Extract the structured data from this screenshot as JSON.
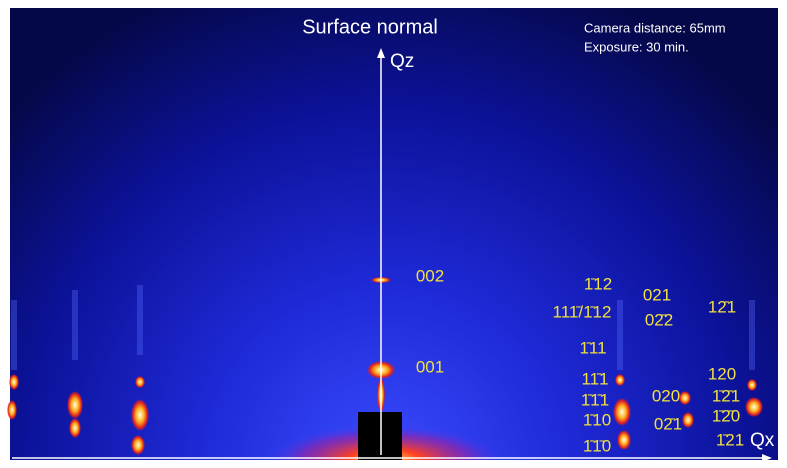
{
  "axes": {
    "z_title": "Surface normal",
    "z_axis": "Qz",
    "x_axis": "Qx"
  },
  "info": [
    "Camera distance: 65mm",
    "Exposure: 30 min."
  ],
  "reflections": [
    {
      "label": "002"
    },
    {
      "label": "001"
    },
    {
      "label": "1̄12"
    },
    {
      "label": "111̄/1̄12"
    },
    {
      "label": "1̄11"
    },
    {
      "label": "11̄1"
    },
    {
      "label": "1̄1̄1"
    },
    {
      "label": "1̄10"
    },
    {
      "label": "1̄1̄0"
    },
    {
      "label": "021"
    },
    {
      "label": "02̄2"
    },
    {
      "label": "020"
    },
    {
      "label": "02̄1"
    },
    {
      "label": "12̄1"
    },
    {
      "label": "120"
    },
    {
      "label": "1̄2̄1"
    },
    {
      "label": "1̄2̄0"
    },
    {
      "label": "1̄21"
    }
  ]
}
